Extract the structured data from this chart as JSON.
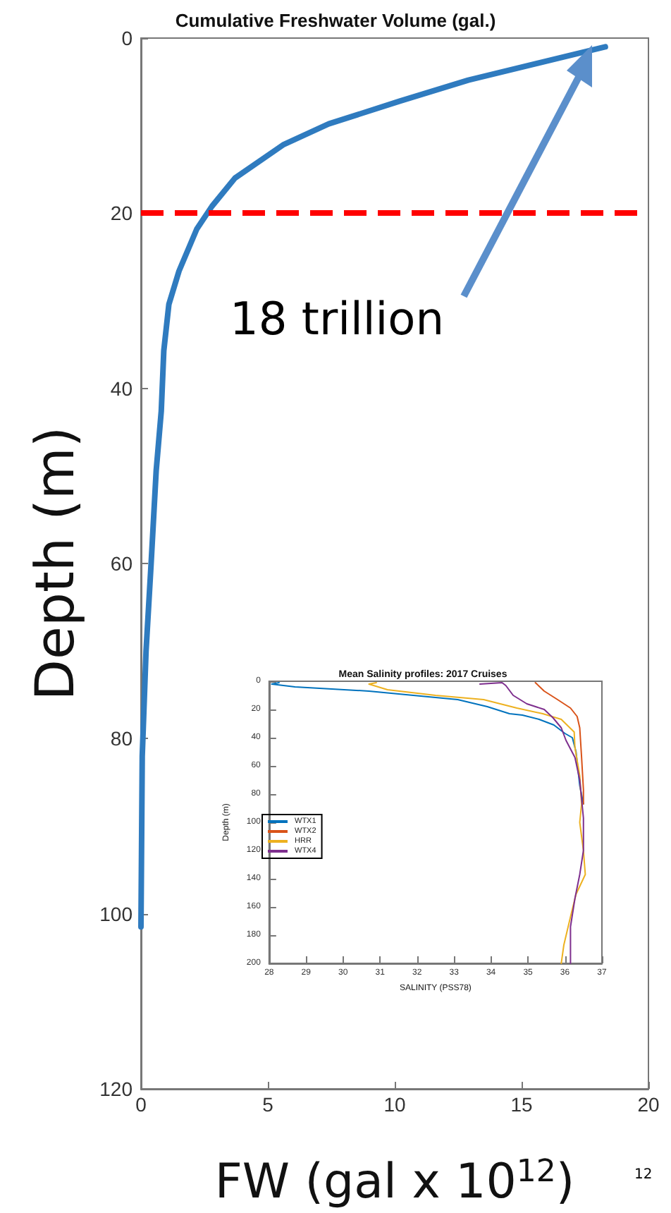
{
  "chart_data": [
    {
      "type": "line",
      "title": "Cumulative Freshwater Volume (gal.)",
      "xlabel": "FW (gal x 10$^{12}$)",
      "ylabel": "Depth (m)",
      "xlim": [
        0,
        20
      ],
      "xticks": [
        0,
        5,
        10,
        15,
        20
      ],
      "ylim": [
        120,
        0
      ],
      "yticks": [
        0,
        20,
        40,
        60,
        80,
        100,
        120
      ],
      "grid": false,
      "legend": false,
      "marker": "none",
      "line_style": "solid",
      "series": [
        {
          "color": "#2f7bbf",
          "x": [
            18.3,
            12.9,
            10.2,
            7.4,
            5.6,
            3.7,
            2.8,
            2.2,
            1.5,
            1.1,
            0.9,
            0.8,
            0.6,
            0.4,
            0.2,
            0.05,
            0
          ],
          "values": [
            1,
            4.8,
            7.2,
            9.8,
            12.2,
            16,
            19.2,
            21.8,
            26.6,
            30.4,
            35.7,
            42.6,
            49.4,
            60,
            70,
            82,
            101.5
          ]
        }
      ],
      "ref_lines": [
        {
          "axis": "y",
          "value": 20,
          "color": "#ff0000",
          "line_style": "dashed"
        }
      ],
      "annotations": [
        "18 trillion",
        "12"
      ]
    },
    {
      "type": "line",
      "title": "Mean Salinity profiles: 2017 Cruises",
      "xlabel": "SALINITY (PSS78)",
      "ylabel": "Depth (m)",
      "xlim": [
        28,
        37
      ],
      "xticks": [
        28,
        29,
        30,
        31,
        32,
        33,
        34,
        35,
        36,
        37
      ],
      "ylim": [
        200,
        0
      ],
      "yticks": [
        0,
        20,
        40,
        60,
        80,
        100,
        120,
        140,
        160,
        180,
        200
      ],
      "grid": false,
      "legend": "left",
      "marker": "none",
      "line_style": "solid",
      "series": [
        {
          "name": "WTX1",
          "color": "#0072bd",
          "x": [
            28.27,
            28.07,
            28.7,
            30.7,
            33.1,
            33.9,
            34.5,
            34.85,
            35.3,
            35.7,
            36.0,
            36.2,
            36.3,
            36.4,
            36.5
          ],
          "values": [
            1,
            2,
            4,
            7,
            13,
            18,
            23,
            24,
            27,
            31,
            37,
            40,
            50,
            74,
            87
          ]
        },
        {
          "name": "WTX2",
          "color": "#d95319",
          "x": [
            35.2,
            35.44,
            35.8,
            36.15,
            36.33,
            36.4,
            36.45,
            36.5,
            36.5
          ],
          "values": [
            1,
            7,
            13,
            19,
            25,
            33,
            54,
            77,
            87
          ]
        },
        {
          "name": "HRR",
          "color": "#edb120",
          "x": [
            30.9,
            30.7,
            31.2,
            32.5,
            33.8,
            34.7,
            35.4,
            35.9,
            36.25,
            36.27,
            36.4,
            36.45,
            36.4,
            36.5,
            36.55,
            36.3,
            36.15,
            35.97,
            35.9
          ],
          "values": [
            1,
            2,
            6,
            10,
            13,
            19,
            23,
            27,
            36,
            47,
            67,
            87,
            100,
            120,
            137,
            151,
            167,
            187,
            200
          ]
        },
        {
          "name": "WTX4",
          "color": "#7e2f8e",
          "x": [
            33.7,
            34.3,
            34.4,
            34.6,
            34.97,
            35.44,
            35.68,
            35.9,
            36.03,
            36.27,
            36.4,
            36.5,
            36.5,
            36.4,
            36.27,
            36.15,
            36.15
          ],
          "values": [
            2,
            1,
            3,
            10,
            16,
            20,
            26,
            33,
            42,
            54,
            70,
            97,
            120,
            137,
            154,
            174,
            200
          ]
        }
      ]
    }
  ]
}
